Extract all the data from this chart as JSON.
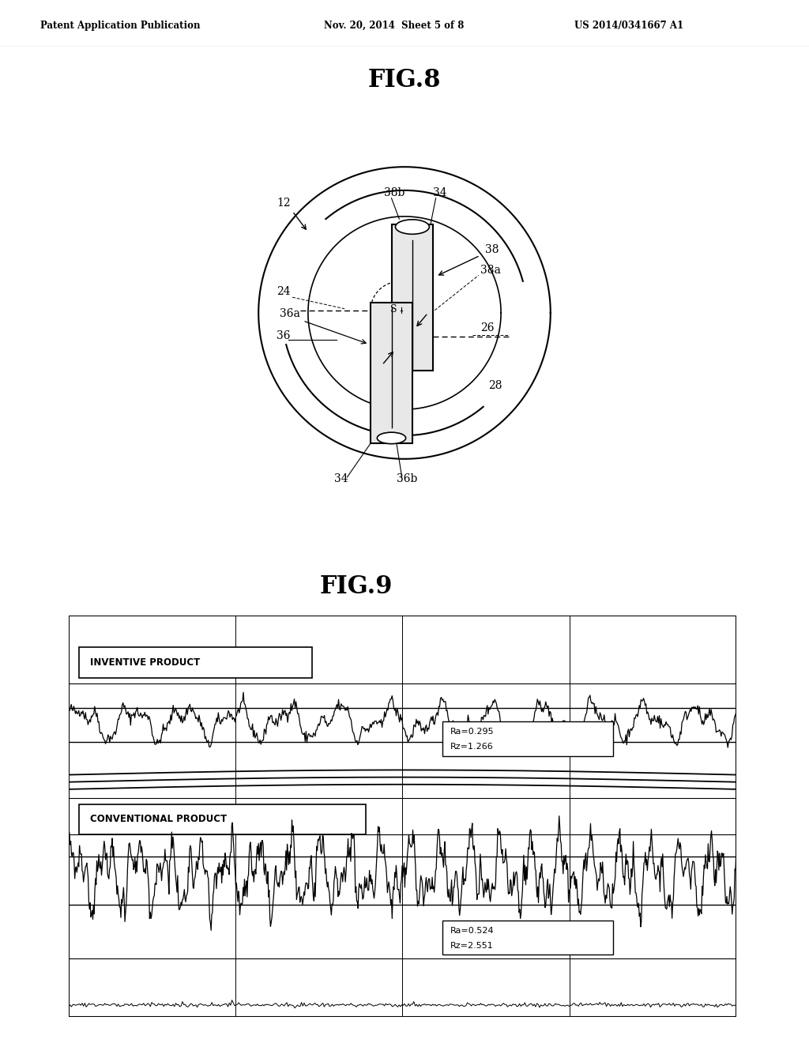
{
  "bg_color": "#ffffff",
  "header_left": "Patent Application Publication",
  "header_mid": "Nov. 20, 2014  Sheet 5 of 8",
  "header_right": "US 2014/0341667 A1",
  "fig8_title": "FIG.8",
  "fig9_title": "FIG.9",
  "inventive_label": "INVENTIVE PRODUCT",
  "inventive_ra": "Ra=0.295",
  "inventive_rz": "Rz=1.266",
  "conventional_label": "CONVENTIONAL PRODUCT",
  "conventional_ra": "Ra=0.524",
  "conventional_rz": "Rz=2.551"
}
